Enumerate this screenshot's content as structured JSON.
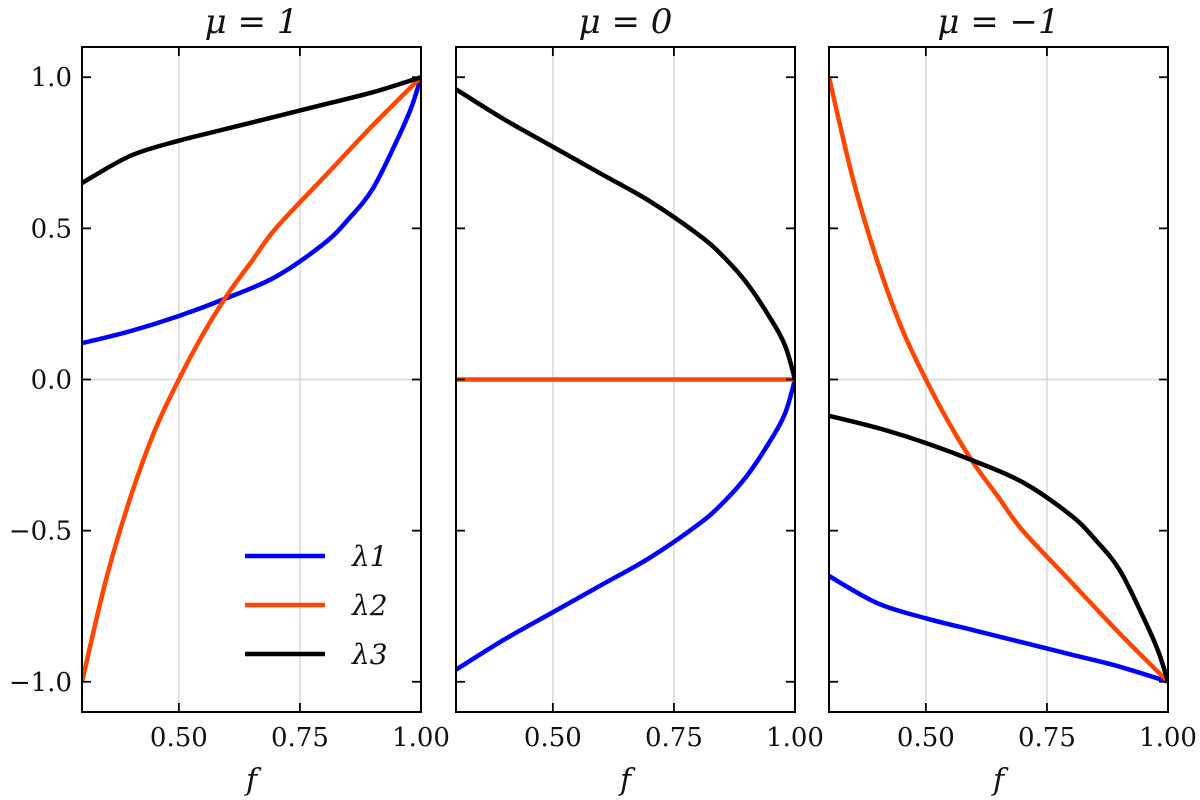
{
  "chart_data": [
    {
      "type": "line",
      "title": "μ = 1",
      "xlabel": "f",
      "ylabel": "",
      "xlim": [
        0.3,
        1.0
      ],
      "ylim": [
        -1.1,
        1.1
      ],
      "xticks": [
        0.5,
        0.75,
        1.0
      ],
      "xtick_labels": [
        "0.50",
        "0.75",
        "1.00"
      ],
      "yticks": [
        -1.0,
        -0.5,
        0.0,
        0.5,
        1.0
      ],
      "ytick_labels": [
        "−1.0",
        "−0.5",
        "0.0",
        "0.5",
        "1.0"
      ],
      "grid": true,
      "legend": "bottom-right",
      "series": [
        {
          "name": "λ1",
          "color": "#0000ff",
          "x": [
            0.3,
            0.4,
            0.5,
            0.6,
            0.7,
            0.8,
            0.85,
            0.9,
            0.95,
            0.98,
            1.0
          ],
          "y": [
            0.12,
            0.16,
            0.21,
            0.27,
            0.34,
            0.45,
            0.53,
            0.63,
            0.79,
            0.9,
            1.0
          ]
        },
        {
          "name": "λ2",
          "color": "#ff4500",
          "x": [
            0.3,
            0.35,
            0.4,
            0.45,
            0.5,
            0.55,
            0.6,
            0.65,
            0.7,
            0.8,
            0.9,
            1.0
          ],
          "y": [
            -1.0,
            -0.66,
            -0.39,
            -0.17,
            0.0,
            0.15,
            0.28,
            0.39,
            0.5,
            0.67,
            0.84,
            1.0
          ]
        },
        {
          "name": "λ3",
          "color": "#000000",
          "x": [
            0.3,
            0.4,
            0.5,
            0.6,
            0.7,
            0.8,
            0.9,
            1.0
          ],
          "y": [
            0.65,
            0.74,
            0.79,
            0.83,
            0.87,
            0.91,
            0.95,
            1.0
          ]
        }
      ]
    },
    {
      "type": "line",
      "title": "μ = 0",
      "xlabel": "f",
      "ylabel": "",
      "xlim": [
        0.3,
        1.0
      ],
      "ylim": [
        -1.1,
        1.1
      ],
      "xticks": [
        0.5,
        0.75,
        1.0
      ],
      "xtick_labels": [
        "0.50",
        "0.75",
        "1.00"
      ],
      "yticks": [
        -1.0,
        -0.5,
        0.0,
        0.5,
        1.0
      ],
      "grid": true,
      "series": [
        {
          "name": "λ1",
          "color": "#0000ff",
          "x": [
            0.3,
            0.4,
            0.5,
            0.6,
            0.7,
            0.8,
            0.85,
            0.9,
            0.95,
            0.98,
            1.0
          ],
          "y": [
            -0.96,
            -0.86,
            -0.77,
            -0.68,
            -0.59,
            -0.48,
            -0.41,
            -0.32,
            -0.2,
            -0.11,
            0.0
          ]
        },
        {
          "name": "λ2",
          "color": "#ff4500",
          "x": [
            0.3,
            1.0
          ],
          "y": [
            0.0,
            0.0
          ]
        },
        {
          "name": "λ3",
          "color": "#000000",
          "x": [
            0.3,
            0.4,
            0.5,
            0.6,
            0.7,
            0.8,
            0.85,
            0.9,
            0.95,
            0.98,
            1.0
          ],
          "y": [
            0.96,
            0.86,
            0.77,
            0.68,
            0.59,
            0.48,
            0.41,
            0.32,
            0.2,
            0.11,
            0.0
          ]
        }
      ]
    },
    {
      "type": "line",
      "title": "μ = −1",
      "xlabel": "f",
      "ylabel": "",
      "xlim": [
        0.3,
        1.0
      ],
      "ylim": [
        -1.1,
        1.1
      ],
      "xticks": [
        0.5,
        0.75,
        1.0
      ],
      "xtick_labels": [
        "0.50",
        "0.75",
        "1.00"
      ],
      "yticks": [
        -1.0,
        -0.5,
        0.0,
        0.5,
        1.0
      ],
      "grid": true,
      "series": [
        {
          "name": "λ1",
          "color": "#0000ff",
          "x": [
            0.3,
            0.4,
            0.5,
            0.6,
            0.7,
            0.8,
            0.9,
            1.0
          ],
          "y": [
            -0.65,
            -0.74,
            -0.79,
            -0.83,
            -0.87,
            -0.91,
            -0.95,
            -1.0
          ]
        },
        {
          "name": "λ2",
          "color": "#ff4500",
          "x": [
            0.3,
            0.35,
            0.4,
            0.45,
            0.5,
            0.55,
            0.6,
            0.65,
            0.7,
            0.8,
            0.9,
            1.0
          ],
          "y": [
            1.0,
            0.66,
            0.39,
            0.17,
            0.0,
            -0.15,
            -0.28,
            -0.39,
            -0.5,
            -0.67,
            -0.84,
            -1.0
          ]
        },
        {
          "name": "λ3",
          "color": "#000000",
          "x": [
            0.3,
            0.4,
            0.5,
            0.6,
            0.7,
            0.8,
            0.85,
            0.9,
            0.95,
            0.98,
            1.0
          ],
          "y": [
            -0.12,
            -0.16,
            -0.21,
            -0.27,
            -0.34,
            -0.45,
            -0.53,
            -0.63,
            -0.79,
            -0.9,
            -1.0
          ]
        }
      ]
    }
  ]
}
